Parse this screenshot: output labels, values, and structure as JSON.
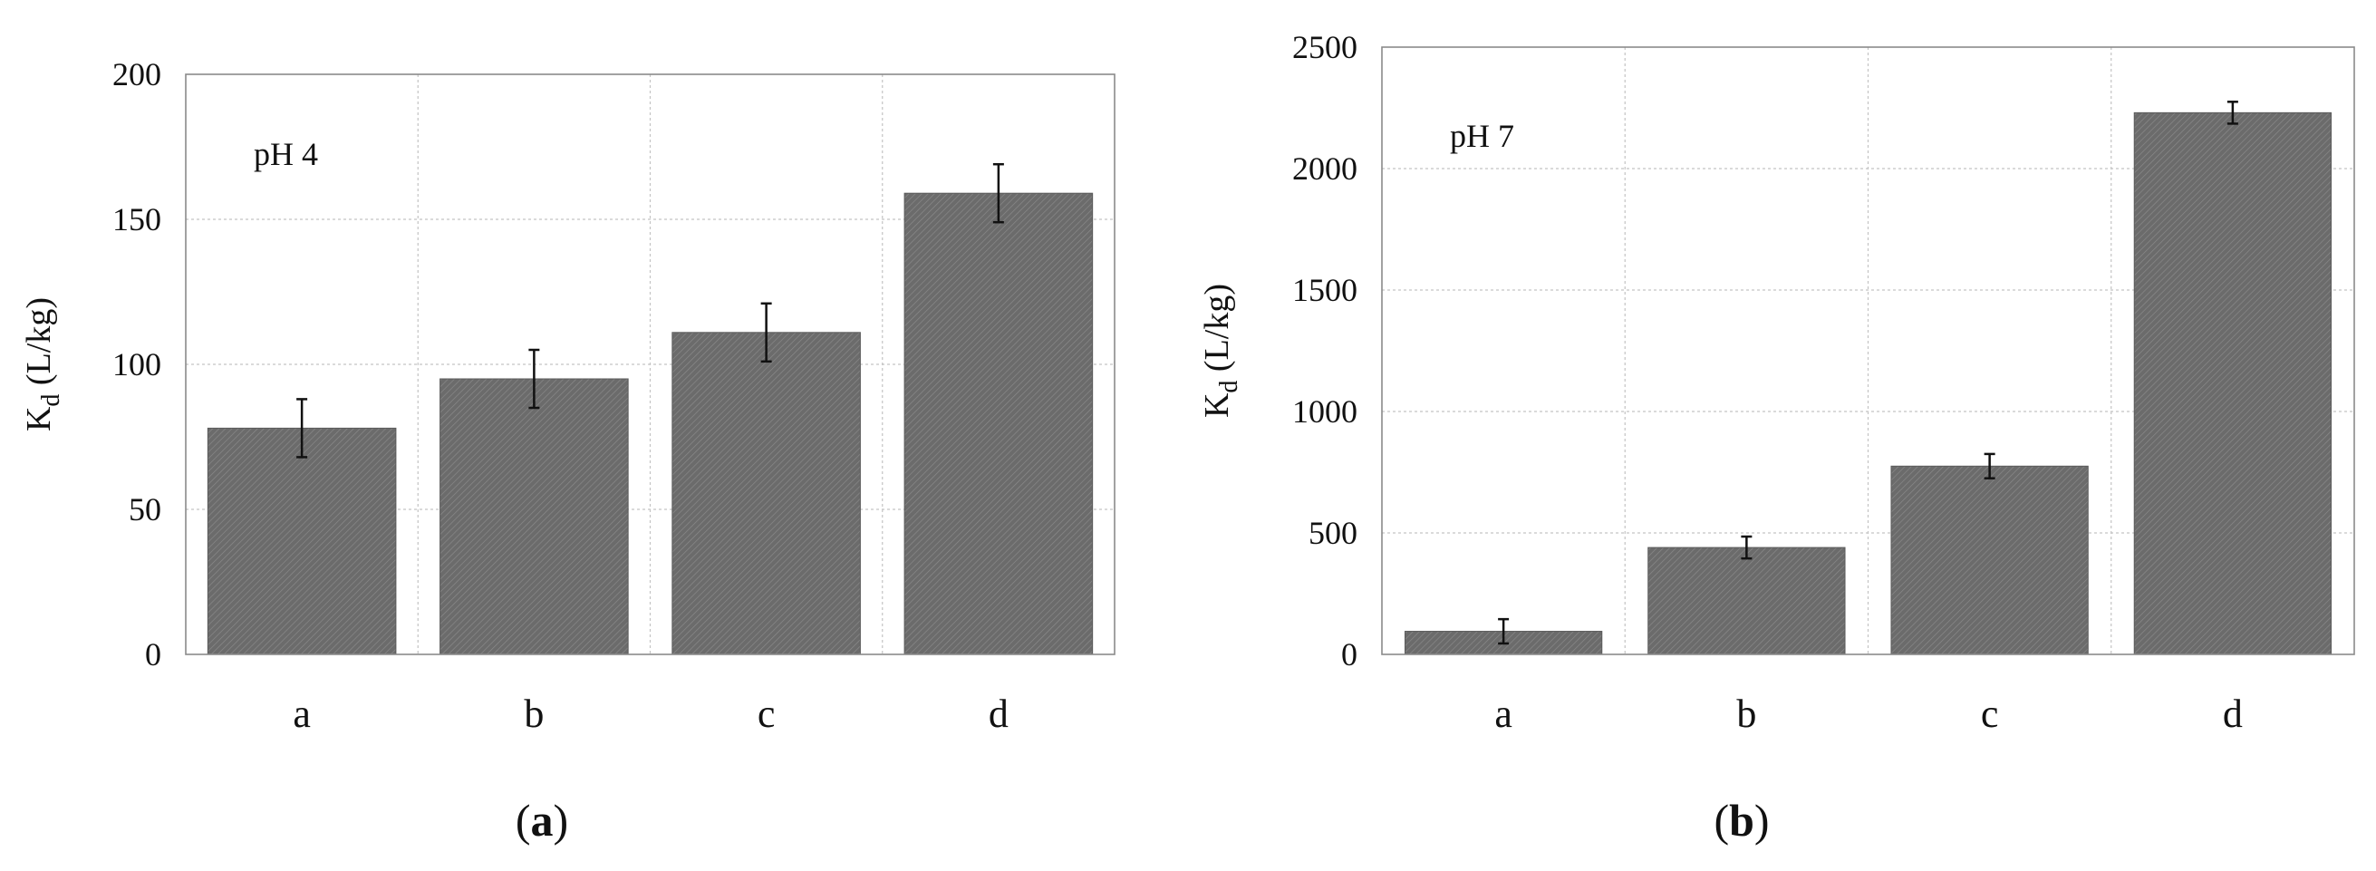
{
  "chart_data": [
    {
      "panel_label_letter": "a",
      "type": "bar",
      "annotation": "pH 4",
      "categories": [
        "a",
        "b",
        "c",
        "d"
      ],
      "values": [
        78,
        95,
        111,
        159
      ],
      "errors": [
        10,
        10,
        10,
        10
      ],
      "ylabel_main": "K",
      "ylabel_sub": "d",
      "ylabel_rest": " (L/kg)",
      "xlabel": "",
      "ylim": [
        0,
        200
      ],
      "yticks": [
        "0",
        "50",
        "100",
        "150",
        "200"
      ],
      "grid": true,
      "bar_color": "#6e6e6e"
    },
    {
      "panel_label_letter": "b",
      "type": "bar",
      "annotation": "pH 7",
      "categories": [
        "a",
        "b",
        "c",
        "d"
      ],
      "values": [
        95,
        440,
        775,
        2230
      ],
      "errors": [
        50,
        45,
        50,
        45
      ],
      "ylabel_main": "K",
      "ylabel_sub": "d",
      "ylabel_rest": " (L/kg)",
      "xlabel": "",
      "ylim": [
        0,
        2500
      ],
      "yticks": [
        "0",
        "500",
        "1000",
        "1500",
        "2000",
        "2500"
      ],
      "grid": true,
      "bar_color": "#6e6e6e"
    }
  ]
}
